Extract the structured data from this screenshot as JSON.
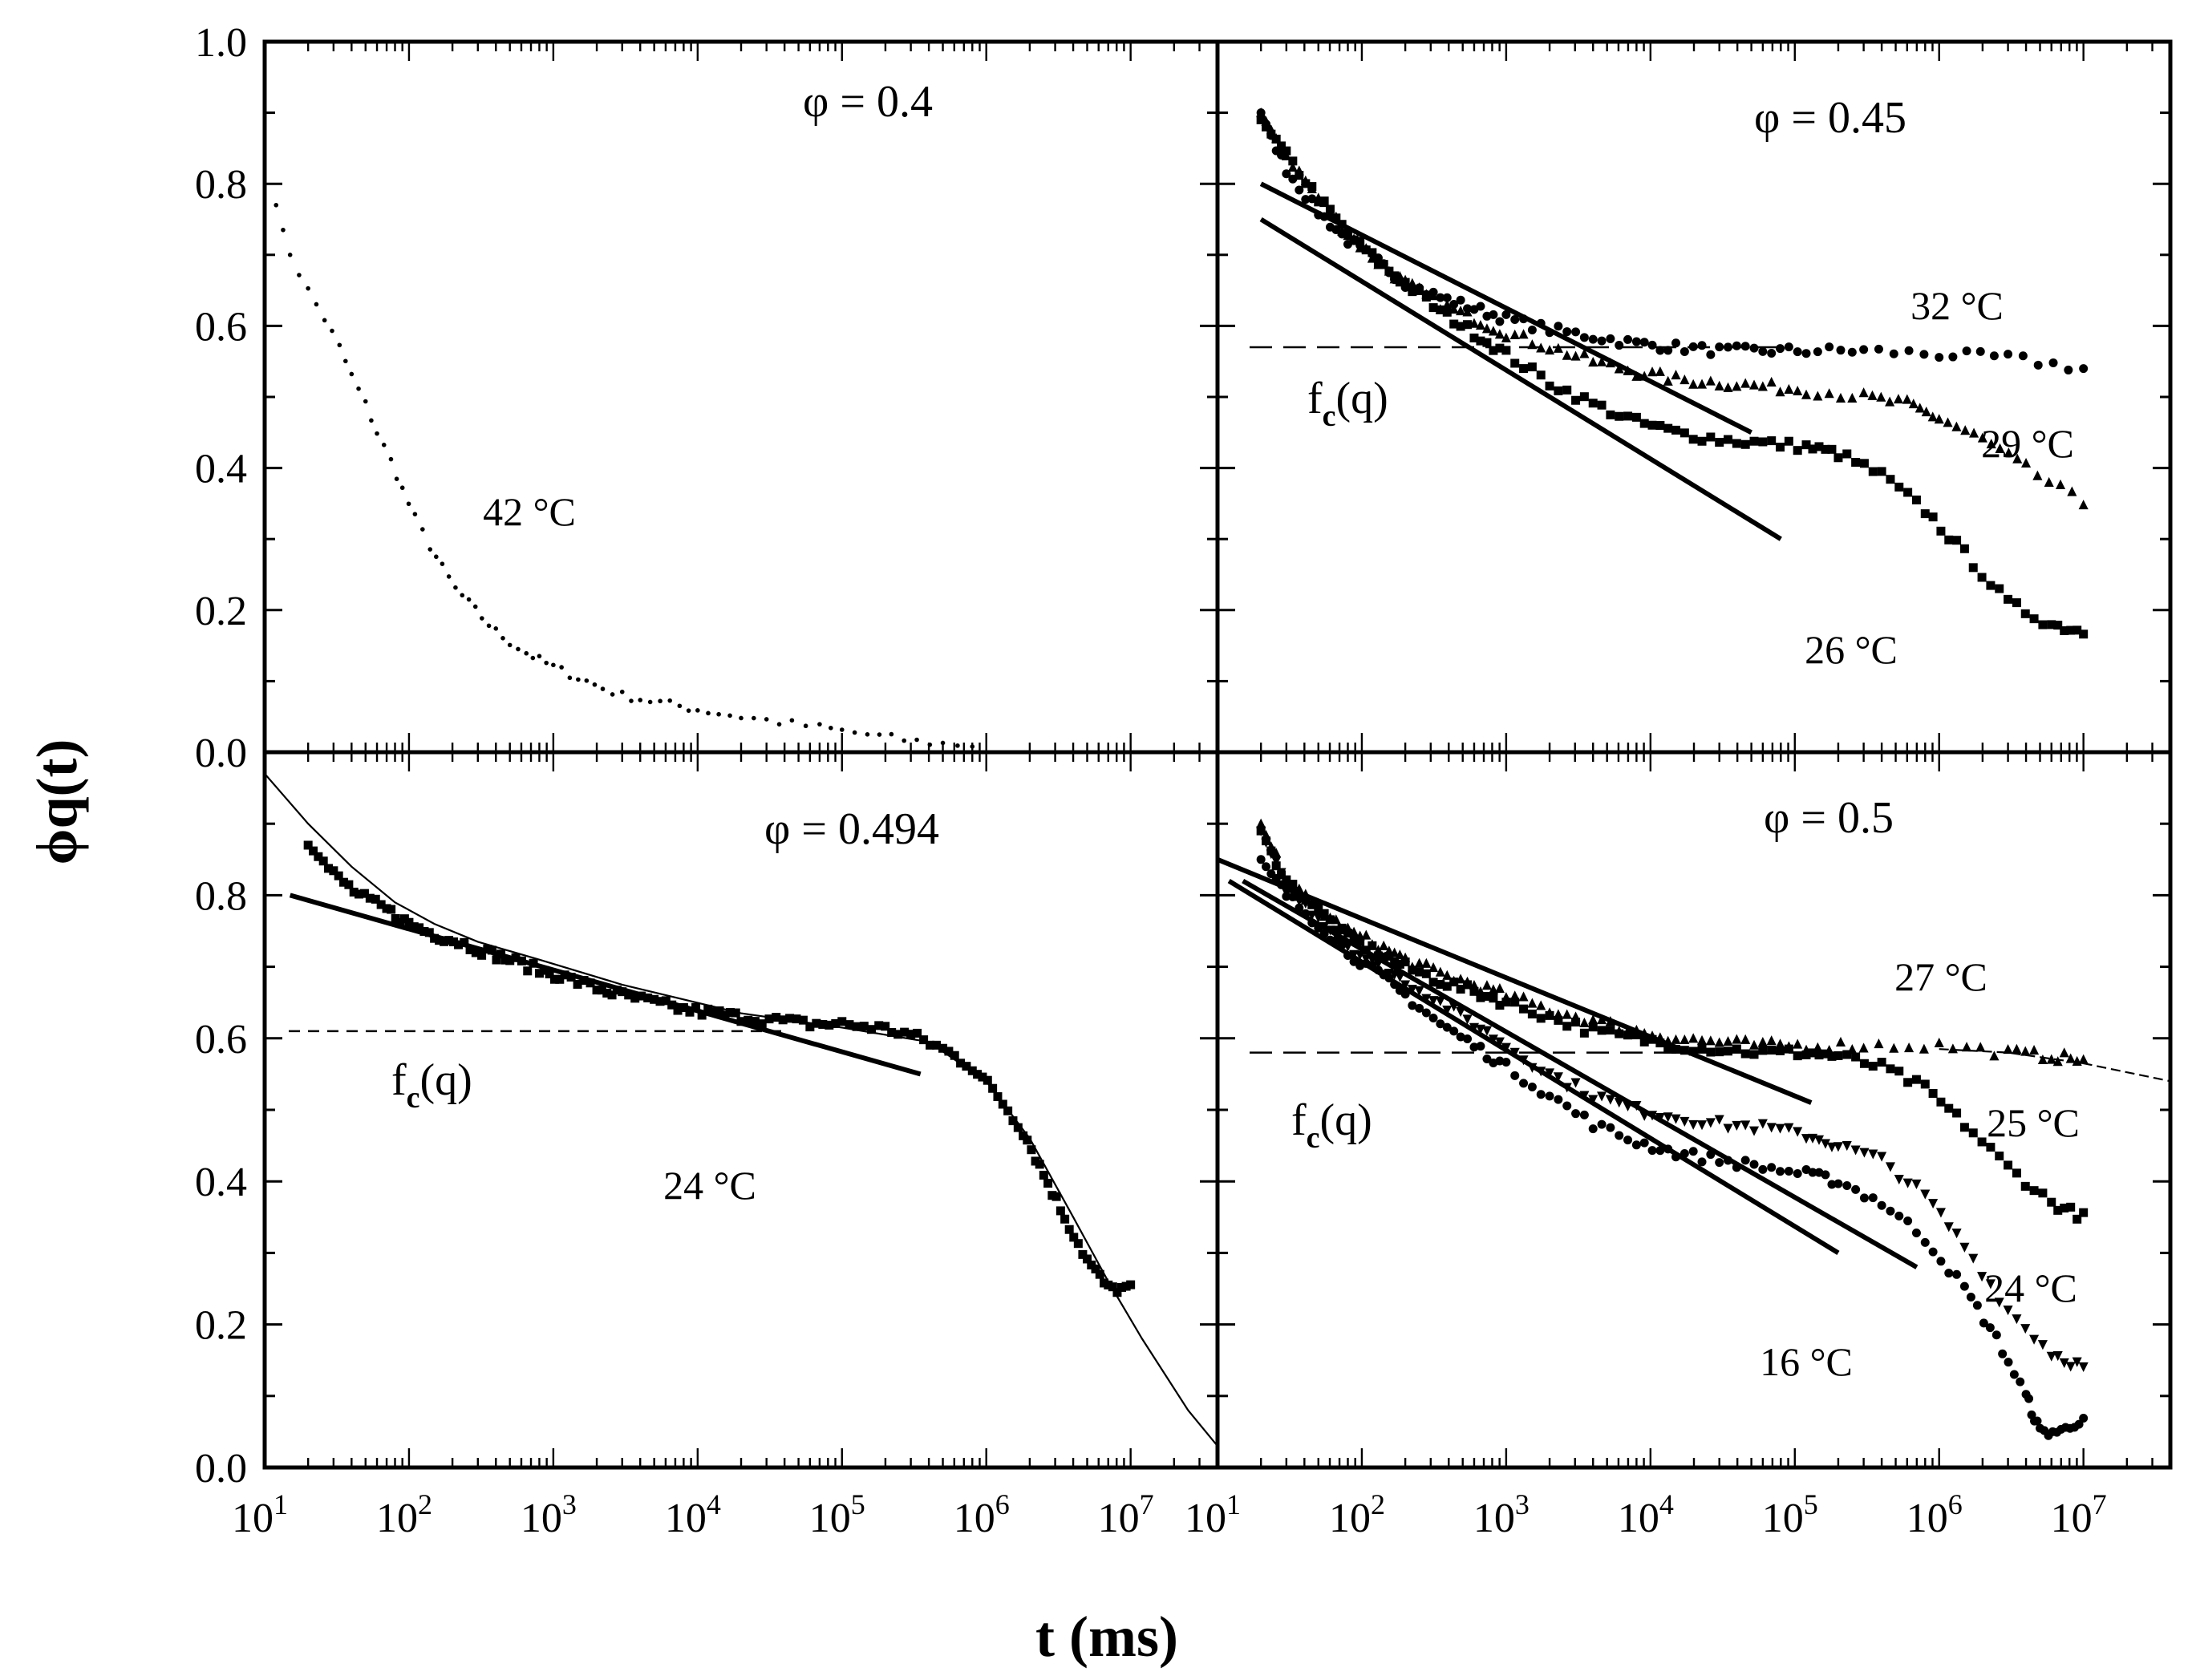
{
  "chart_data": {
    "type": "scatter",
    "xlabel": "t (ms)",
    "ylabel": "ϕq(t)",
    "xscale": "log",
    "xlim": [
      10,
      40000000
    ],
    "ylim": [
      0,
      1.0
    ],
    "yticks": [
      "0.0",
      "0.2",
      "0.4",
      "0.6",
      "0.8",
      "1.0"
    ],
    "xtick_exponents": [
      "1",
      "2",
      "3",
      "4",
      "5",
      "6",
      "7"
    ],
    "xtick_base": "10",
    "panels": [
      {
        "id": "a",
        "position": "top-left",
        "phi_label": "φ = 0.4",
        "series": [
          {
            "name": "42 °C",
            "marker": "dot",
            "x": [
              12,
              15,
              20,
              26,
              33,
              40,
              50,
              60,
              75,
              90,
              110,
              140,
              170,
              210,
              260,
              320,
              400,
              500,
              650,
              800,
              1000,
              1300,
              1700,
              2200,
              3000,
              4000,
              5500,
              7500,
              10000,
              14000,
              20000,
              30000,
              45000,
              70000,
              100000,
              150000,
              220000,
              330000,
              500000,
              800000
            ],
            "y": [
              0.77,
              0.7,
              0.65,
              0.61,
              0.57,
              0.53,
              0.49,
              0.45,
              0.41,
              0.37,
              0.33,
              0.29,
              0.26,
              0.23,
              0.21,
              0.19,
              0.17,
              0.155,
              0.14,
              0.13,
              0.12,
              0.11,
              0.1,
              0.09,
              0.08,
              0.075,
              0.07,
              0.065,
              0.06,
              0.055,
              0.05,
              0.045,
              0.04,
              0.035,
              0.03,
              0.025,
              0.02,
              0.015,
              0.012,
              0.01
            ]
          }
        ],
        "annotations": [
          {
            "text": "42 °C"
          }
        ]
      },
      {
        "id": "b",
        "position": "top-right",
        "phi_label": "φ = 0.45",
        "fc_label": "f",
        "fc_sub": "c",
        "fc_suffix": "(q)",
        "fc_value": 0.57,
        "series": [
          {
            "name": "32 °C",
            "marker": "circle",
            "x": [
              20,
              30,
              50,
              80,
              130,
              200,
              350,
              600,
              1000,
              2000,
              4000,
              8000,
              15000,
              30000,
              60000,
              120000,
              300000,
              1000000,
              3000000,
              10000000
            ],
            "y": [
              0.9,
              0.82,
              0.76,
              0.72,
              0.69,
              0.66,
              0.64,
              0.625,
              0.61,
              0.595,
              0.585,
              0.575,
              0.57,
              0.565,
              0.565,
              0.565,
              0.565,
              0.56,
              0.555,
              0.54
            ]
          },
          {
            "name": "29 °C",
            "marker": "triangle",
            "x": [
              20,
              30,
              50,
              80,
              130,
              200,
              350,
              600,
              1000,
              2000,
              4000,
              8000,
              15000,
              30000,
              60000,
              120000,
              300000,
              600000,
              1000000,
              2000000,
              4000000,
              10000000
            ],
            "y": [
              0.9,
              0.84,
              0.78,
              0.73,
              0.69,
              0.66,
              0.63,
              0.61,
              0.59,
              0.57,
              0.55,
              0.535,
              0.525,
              0.52,
              0.515,
              0.51,
              0.5,
              0.49,
              0.47,
              0.44,
              0.4,
              0.35
            ]
          },
          {
            "name": "26 °C",
            "marker": "square",
            "x": [
              20,
              30,
              50,
              80,
              130,
              200,
              350,
              600,
              1000,
              2000,
              4000,
              8000,
              15000,
              30000,
              60000,
              120000,
              200000,
              400000,
              800000,
              1500000,
              3000000,
              6000000,
              10000000
            ],
            "y": [
              0.89,
              0.84,
              0.78,
              0.73,
              0.69,
              0.66,
              0.62,
              0.59,
              0.56,
              0.52,
              0.49,
              0.465,
              0.45,
              0.44,
              0.435,
              0.43,
              0.42,
              0.39,
              0.34,
              0.28,
              0.21,
              0.18,
              0.17
            ]
          }
        ],
        "fits": [
          {
            "x": [
              20,
              50000
            ],
            "y": [
              0.8,
              0.45
            ]
          },
          {
            "x": [
              20,
              80000
            ],
            "y": [
              0.75,
              0.3
            ]
          }
        ],
        "annotations": [
          {
            "text": "32 °C"
          },
          {
            "text": "29 °C"
          },
          {
            "text": "26 °C"
          }
        ]
      },
      {
        "id": "c",
        "position": "bottom-left",
        "phi_label": "φ = 0.494",
        "fc_label": "f",
        "fc_sub": "c",
        "fc_suffix": "(q)",
        "fc_value": 0.61,
        "series": [
          {
            "name": "24 °C",
            "marker": "square",
            "x": [
              20,
              30,
              45,
              70,
              100,
              150,
              220,
              350,
              500,
              800,
              1200,
              2000,
              3000,
              5000,
              8000,
              13000,
              20000,
              35000,
              60000,
              100000,
              180000,
              300000,
              500000,
              800000,
              1200000,
              1800000,
              2500000,
              3500000,
              5000000,
              7000000,
              10000000
            ],
            "y": [
              0.87,
              0.83,
              0.8,
              0.78,
              0.76,
              0.745,
              0.735,
              0.72,
              0.71,
              0.695,
              0.685,
              0.67,
              0.66,
              0.65,
              0.64,
              0.635,
              0.63,
              0.625,
              0.62,
              0.62,
              0.615,
              0.605,
              0.585,
              0.56,
              0.52,
              0.47,
              0.41,
              0.35,
              0.29,
              0.25,
              0.25
            ]
          }
        ],
        "fits": [
          {
            "x": [
              15,
              350000
            ],
            "y": [
              0.8,
              0.55
            ]
          }
        ],
        "thin_curve": {
          "x": [
            10,
            20,
            40,
            80,
            150,
            300,
            800,
            3000,
            20000,
            100000,
            400000,
            1000000,
            2000000,
            4000000,
            7000000,
            12000000,
            25000000,
            40000000
          ],
          "y": [
            0.97,
            0.9,
            0.84,
            0.79,
            0.76,
            0.735,
            0.71,
            0.675,
            0.635,
            0.615,
            0.595,
            0.54,
            0.46,
            0.35,
            0.26,
            0.18,
            0.08,
            0.03
          ]
        },
        "annotations": [
          {
            "text": "24 °C"
          }
        ]
      },
      {
        "id": "d",
        "position": "bottom-right",
        "phi_label": "φ = 0.5",
        "fc_label": "f",
        "fc_sub": "c",
        "fc_suffix": "(q)",
        "fc_value": 0.58,
        "series": [
          {
            "name": "27 °C",
            "marker": "triangle",
            "x": [
              20,
              30,
              50,
              80,
              130,
              200,
              350,
              600,
              1000,
              2000,
              4000,
              8000,
              15000,
              30000,
              60000,
              120000,
              300000,
              1000000,
              3000000,
              6000000,
              10000000
            ],
            "y": [
              0.9,
              0.82,
              0.78,
              0.75,
              0.73,
              0.71,
              0.69,
              0.675,
              0.66,
              0.64,
              0.625,
              0.61,
              0.6,
              0.595,
              0.59,
              0.59,
              0.59,
              0.59,
              0.58,
              0.575,
              0.57
            ]
          },
          {
            "name": "25 °C",
            "marker": "square",
            "x": [
              20,
              30,
              50,
              80,
              130,
              200,
              350,
              600,
              1000,
              2000,
              4000,
              8000,
              15000,
              30000,
              60000,
              120000,
              200000,
              400000,
              800000,
              1500000,
              3000000,
              6000000,
              10000000
            ],
            "y": [
              0.89,
              0.82,
              0.78,
              0.74,
              0.72,
              0.7,
              0.68,
              0.665,
              0.65,
              0.63,
              0.61,
              0.6,
              0.59,
              0.585,
              0.58,
              0.58,
              0.575,
              0.56,
              0.53,
              0.48,
              0.42,
              0.37,
              0.35
            ]
          },
          {
            "name": "24 °C",
            "marker": "triangle-down",
            "x": [
              20,
              30,
              50,
              80,
              130,
              200,
              350,
              600,
              1000,
              2000,
              4000,
              8000,
              15000,
              30000,
              60000,
              120000,
              200000,
              400000,
              800000,
              1500000,
              3000000,
              6000000,
              10000000
            ],
            "y": [
              0.89,
              0.81,
              0.77,
              0.73,
              0.7,
              0.68,
              0.65,
              0.62,
              0.59,
              0.55,
              0.52,
              0.5,
              0.49,
              0.48,
              0.475,
              0.465,
              0.45,
              0.43,
              0.38,
              0.31,
              0.22,
              0.16,
              0.14
            ]
          },
          {
            "name": "16 °C",
            "marker": "circle",
            "x": [
              20,
              30,
              50,
              80,
              130,
              200,
              350,
              600,
              1000,
              2000,
              4000,
              8000,
              15000,
              30000,
              60000,
              120000,
              200000,
              400000,
              800000,
              1500000,
              2500000,
              4000000,
              5000000,
              7000000,
              10000000
            ],
            "y": [
              0.85,
              0.8,
              0.76,
              0.72,
              0.69,
              0.66,
              0.62,
              0.59,
              0.56,
              0.52,
              0.48,
              0.455,
              0.44,
              0.43,
              0.42,
              0.41,
              0.4,
              0.37,
              0.32,
              0.25,
              0.18,
              0.1,
              0.05,
              0.05,
              0.07
            ]
          }
        ],
        "fits": [
          {
            "x": [
              10,
              130000
            ],
            "y": [
              0.85,
              0.51
            ]
          },
          {
            "x": [
              12,
              200000
            ],
            "y": [
              0.82,
              0.3
            ]
          },
          {
            "x": [
              15,
              700000
            ],
            "y": [
              0.82,
              0.28
            ]
          }
        ],
        "thin_curve": {
          "x": [
            1000000,
            3000000,
            10000000,
            40000000
          ],
          "y": [
            0.585,
            0.58,
            0.565,
            0.54
          ]
        },
        "annotations": [
          {
            "text": "27 °C"
          },
          {
            "text": "25 °C"
          },
          {
            "text": "24 °C"
          },
          {
            "text": "16 °C"
          }
        ]
      }
    ]
  }
}
